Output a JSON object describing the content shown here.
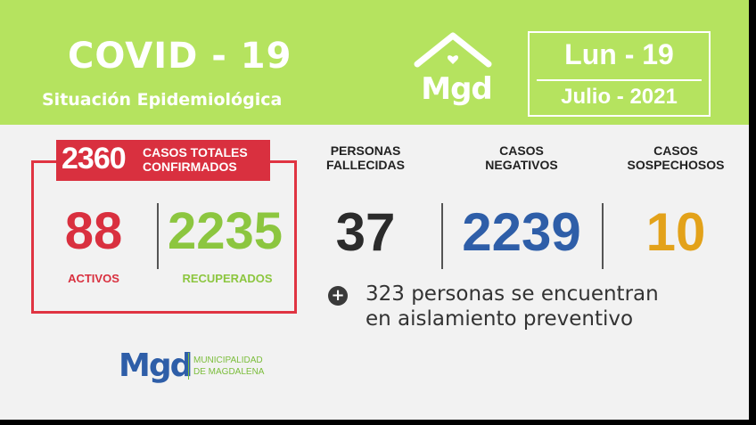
{
  "header": {
    "title": "COVID - 19",
    "subtitle": "Situación Epidemiológica",
    "logo_text": "Mgd",
    "date_day": "Lun - 19",
    "date_month": "Julio - 2021"
  },
  "totals": {
    "value": "2360",
    "label_line1": "CASOS TOTALES",
    "label_line2": "CONFIRMADOS"
  },
  "activos": {
    "value": "88",
    "label": "ACTIVOS"
  },
  "recuperados": {
    "value": "2235",
    "label": "RECUPERADOS"
  },
  "fallecidas": {
    "head_line1": "PERSONAS",
    "head_line2": "FALLECIDAS",
    "value": "37"
  },
  "negativos": {
    "head_line1": "CASOS",
    "head_line2": "NEGATIVOS",
    "value": "2239"
  },
  "sospechosos": {
    "head_line1": "CASOS",
    "head_line2": "SOSPECHOSOS",
    "value": "10"
  },
  "note": {
    "icon": "plus-circle-icon",
    "line1": "323 personas se encuentran",
    "line2": "en aislamiento preventivo"
  },
  "footer_logo": {
    "mgd": "Mgd",
    "line1": "MUNICIPALIDAD",
    "line2": "DE MAGDALENA"
  },
  "colors": {
    "header_green": "#b5e35f",
    "red": "#d9303f",
    "green": "#8cc63f",
    "blue": "#2e5ea8",
    "orange": "#e3a21a",
    "dark": "#2b2b2b"
  }
}
